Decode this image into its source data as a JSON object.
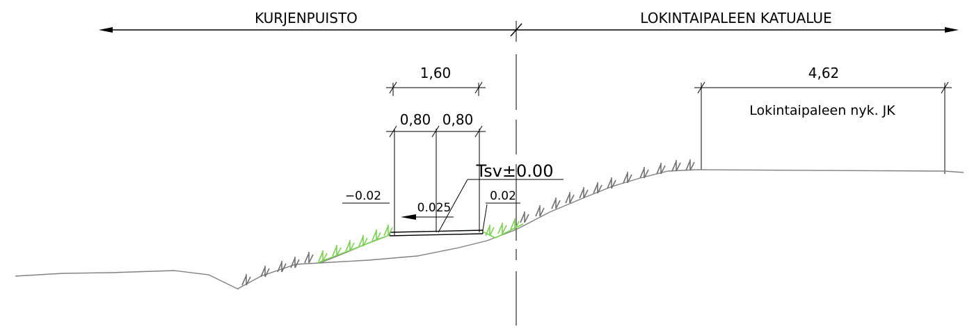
{
  "zones": {
    "left": "KURJENPUISTO",
    "right": "LOKINTAIPALEEN KATUALUE"
  },
  "dimensions": {
    "total_width": "1,60",
    "left_half": "0,80",
    "right_half": "0,80",
    "existing_width": "4,62"
  },
  "labels": {
    "existing_path": "Lokintaipaleen nyk. JK",
    "level": "Tsv±0.00",
    "slope_left": "−0.02",
    "slope_middle": "0.025",
    "slope_right": "0.02"
  },
  "colors": {
    "line": "#000000",
    "ground": "#808080",
    "grass_dark": "#707070",
    "grass_green": "#7ad14f"
  }
}
